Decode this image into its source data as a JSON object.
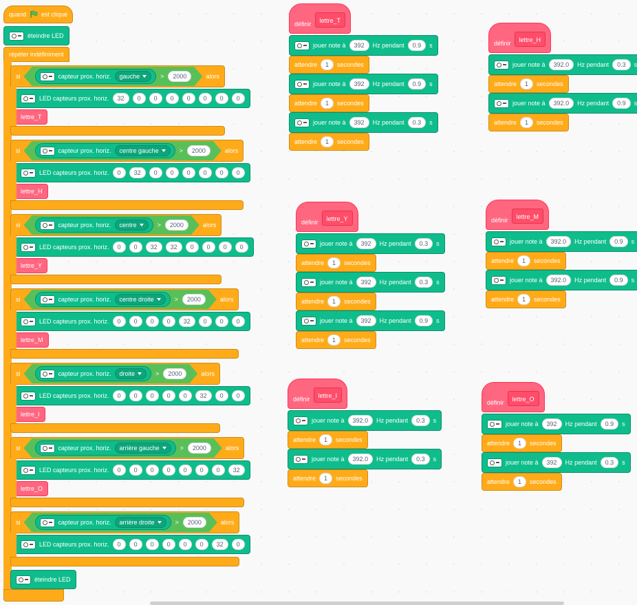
{
  "labels": {
    "if": "si",
    "then": "alors",
    "sensor": "capteur prox. horiz.",
    "operator": ">",
    "led": "LED capteurs prox. horiz.",
    "play": "jouer note à",
    "hz": "Hz pendant",
    "s": "s",
    "wait": "attendre",
    "seconds": "secondes",
    "define": "définir"
  },
  "main_script": {
    "hat": {
      "before": "quand",
      "after": "est cliqué"
    },
    "start": "éteindre LED",
    "loop": "répéter indéfiniment",
    "conditions": [
      {
        "option": "gauche",
        "threshold": "2000",
        "led": [
          "32",
          "0",
          "0",
          "0",
          "0",
          "0",
          "0",
          "0"
        ],
        "call": "lettre_T"
      },
      {
        "option": "centre gauche",
        "threshold": "2000",
        "led": [
          "0",
          "32",
          "0",
          "0",
          "0",
          "0",
          "0",
          "0"
        ],
        "call": "lettre_H"
      },
      {
        "option": "centre",
        "threshold": "2000",
        "led": [
          "0",
          "0",
          "32",
          "32",
          "0",
          "0",
          "0",
          "0"
        ],
        "call": "lettre_Y"
      },
      {
        "option": "centre droite",
        "threshold": "2000",
        "led": [
          "0",
          "0",
          "0",
          "0",
          "32",
          "0",
          "0",
          "0"
        ],
        "call": "lettre_M"
      },
      {
        "option": "droite",
        "threshold": "2000",
        "led": [
          "0",
          "0",
          "0",
          "0",
          "0",
          "32",
          "0",
          "0"
        ],
        "call": "lettre_I"
      },
      {
        "option": "arrière gauche",
        "threshold": "2000",
        "led": [
          "0",
          "0",
          "0",
          "0",
          "0",
          "0",
          "0",
          "32"
        ],
        "call": "lettre_O"
      },
      {
        "option": "arrière droite",
        "threshold": "2000",
        "led": [
          "0",
          "0",
          "0",
          "0",
          "0",
          "0",
          "32",
          "0"
        ]
      }
    ],
    "end": "éteindre LED"
  },
  "definitions": [
    {
      "name": "lettre_T",
      "steps": [
        {
          "note": "392",
          "duration": "0.9"
        },
        {
          "wait": "1"
        },
        {
          "note": "392",
          "duration": "0.9"
        },
        {
          "wait": "1"
        },
        {
          "note": "392",
          "duration": "0.3"
        },
        {
          "wait": "1"
        }
      ]
    },
    {
      "name": "lettre_H",
      "steps": [
        {
          "note": "392.0",
          "duration": "0.3"
        },
        {
          "wait": "1"
        },
        {
          "note": "392.0",
          "duration": "0.9"
        },
        {
          "wait": "1"
        }
      ]
    },
    {
      "name": "lettre_Y",
      "steps": [
        {
          "note": "392",
          "duration": "0.3"
        },
        {
          "wait": "1"
        },
        {
          "note": "392",
          "duration": "0.3"
        },
        {
          "wait": "1"
        },
        {
          "note": "392",
          "duration": "0.9"
        },
        {
          "wait": "1"
        }
      ]
    },
    {
      "name": "lettre_M",
      "steps": [
        {
          "note": "392.0",
          "duration": "0.9"
        },
        {
          "wait": "1"
        },
        {
          "note": "392.0",
          "duration": "0.9"
        },
        {
          "wait": "1"
        }
      ]
    },
    {
      "name": "lettre_I",
      "steps": [
        {
          "note": "392.0",
          "duration": "0.3"
        },
        {
          "wait": "1"
        },
        {
          "note": "392.0",
          "duration": "0.3"
        },
        {
          "wait": "1"
        }
      ]
    },
    {
      "name": "lettre_O",
      "steps": [
        {
          "note": "392",
          "duration": "0.9"
        },
        {
          "wait": "1"
        },
        {
          "note": "392",
          "duration": "0.3"
        },
        {
          "wait": "1"
        }
      ]
    }
  ]
}
